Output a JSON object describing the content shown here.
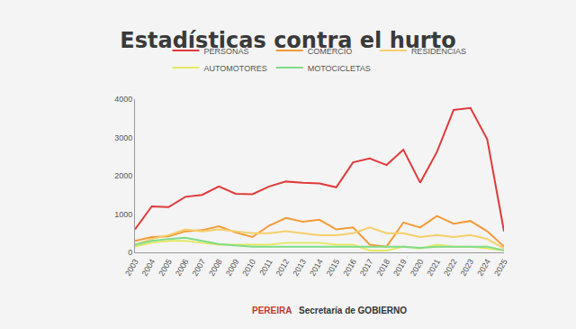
{
  "chart_data": {
    "type": "line",
    "title": "Estadísticas contra el hurto",
    "categories": [
      "2003",
      "2004",
      "2005",
      "2006",
      "2007",
      "2008",
      "2009",
      "2010",
      "2011",
      "2012",
      "2013",
      "2014",
      "2015",
      "2016",
      "2017",
      "2018",
      "2019",
      "2020",
      "2021",
      "2022",
      "2023",
      "2024",
      "2025"
    ],
    "series": [
      {
        "name": "PERSONAS",
        "color": "#e03a3a",
        "values": [
          600,
          1200,
          1180,
          1450,
          1500,
          1720,
          1530,
          1520,
          1720,
          1850,
          1820,
          1800,
          1700,
          2350,
          2450,
          2280,
          2680,
          1820,
          2620,
          3720,
          3770,
          2950,
          550
        ]
      },
      {
        "name": "COMERCIO",
        "color": "#f29b38",
        "values": [
          300,
          400,
          420,
          550,
          580,
          680,
          520,
          400,
          700,
          900,
          800,
          850,
          600,
          650,
          200,
          150,
          780,
          650,
          950,
          750,
          820,
          550,
          150
        ]
      },
      {
        "name": "RESIDENCIAS",
        "color": "#f5cf6a",
        "values": [
          200,
          350,
          450,
          600,
          550,
          600,
          550,
          500,
          500,
          550,
          500,
          450,
          450,
          500,
          650,
          500,
          500,
          400,
          450,
          400,
          450,
          350,
          100
        ]
      },
      {
        "name": "AUTOMOTORES",
        "color": "#e4e866",
        "values": [
          150,
          250,
          300,
          300,
          250,
          200,
          200,
          200,
          200,
          250,
          250,
          250,
          200,
          200,
          50,
          50,
          150,
          100,
          200,
          150,
          150,
          100,
          50
        ]
      },
      {
        "name": "MOTOCICLETAS",
        "color": "#7fdc86",
        "values": [
          200,
          300,
          350,
          380,
          300,
          220,
          180,
          150,
          150,
          150,
          150,
          150,
          150,
          150,
          150,
          150,
          150,
          120,
          150,
          150,
          150,
          150,
          50
        ]
      }
    ],
    "ylim": [
      0,
      4000
    ],
    "yticks": [
      0,
      1000,
      2000,
      3000,
      4000
    ],
    "grid": false,
    "legend": "top",
    "annotations": [
      "PEREIRA",
      "Secretaría de GOBIERNO"
    ]
  }
}
